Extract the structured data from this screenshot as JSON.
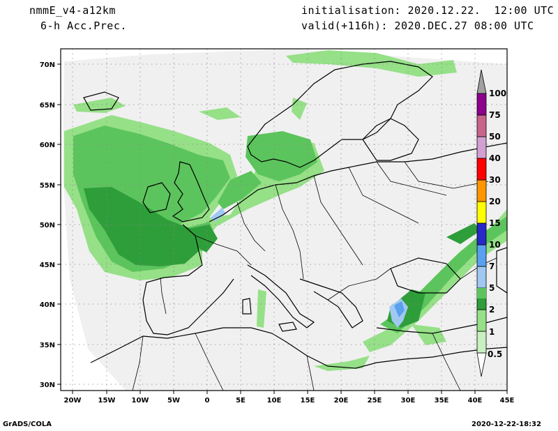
{
  "header": {
    "model": "nmmE_v4-a12km",
    "field": "6-h Acc.Prec.",
    "init": "initialisation: 2020.12.22.  12:00 UTC",
    "valid": "valid(+116h): 2020.DEC.27 08:00 UTC"
  },
  "footer": {
    "left": "GrADS/COLA",
    "right": "2020-12-22-18:32"
  },
  "axes": {
    "lon_labels": [
      "20W",
      "15W",
      "10W",
      "5W",
      "0",
      "5E",
      "10E",
      "15E",
      "20E",
      "25E",
      "30E",
      "35E",
      "40E",
      "45E"
    ],
    "lat_labels": [
      "70N",
      "65N",
      "60N",
      "55N",
      "50N",
      "45N",
      "40N",
      "35N",
      "30N"
    ]
  },
  "legend": {
    "labels": [
      "0.5",
      "1",
      "2",
      "5",
      "7",
      "10",
      "15",
      "20",
      "30",
      "40",
      "50",
      "75",
      "100"
    ],
    "colors": [
      "#c8f0c0",
      "#96e088",
      "#5cc45c",
      "#2e9e3a",
      "#a0c8f0",
      "#5aa0f0",
      "#2828c8",
      "#ffff00",
      "#ff9600",
      "#ff0000",
      "#d2a0d2",
      "#c8648c",
      "#8c008c",
      "#a0a0a0"
    ]
  },
  "map": {
    "domain_fill": "#f0f0f0",
    "land_outline": "#000000"
  }
}
